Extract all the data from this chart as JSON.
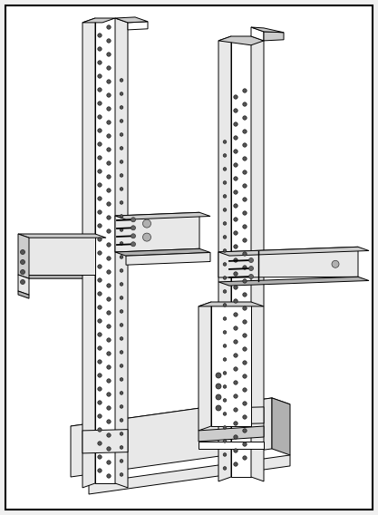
{
  "figure_width": 4.17,
  "figure_height": 5.68,
  "dpi": 100,
  "bg": "#f0f0f0",
  "white": "#ffffff",
  "c_light": "#e8e8e8",
  "c_mid": "#cccccc",
  "c_dark": "#b0b0b0",
  "c_darker": "#909090",
  "black": "#000000",
  "hole_fc": "#555555",
  "hole_ec": "#222222",
  "screw_fc": "#666666"
}
